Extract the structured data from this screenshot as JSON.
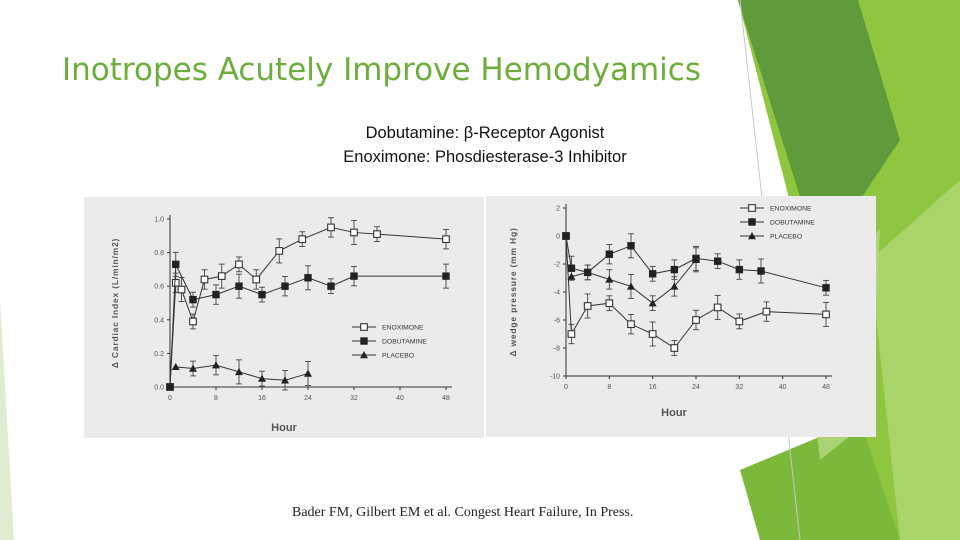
{
  "slide": {
    "title": "Inotropes Acutely Improve Hemodyamics",
    "subtitle_line1": "Dobutamine: β-Receptor Agonist",
    "subtitle_line2": "Enoximone: Phosdiesterase-3 Inhibitor",
    "citation": "Bader FM, Gilbert EM et al.  Congest Heart Failure, In Press."
  },
  "colors": {
    "title": "#6dae3a",
    "accent_green_dark": "#5f9b3a",
    "accent_green_light": "#8fc63f",
    "scan_background": "#ebebeb"
  },
  "chart_data": [
    {
      "type": "line",
      "xlabel": "Hour",
      "ylabel": "Δ Cardiac Index (L/min/m2)",
      "xlim": [
        0,
        48
      ],
      "ylim": [
        0,
        1.0
      ],
      "x_ticks": [
        "0",
        "8",
        "16",
        "24",
        "32",
        "40",
        "48"
      ],
      "y_ticks": [
        "0.0",
        "0.2",
        "0.4",
        "0.6",
        "0.8",
        "1.0"
      ],
      "legend_position": "bottom-right",
      "series": [
        {
          "name": "ENOXIMONE",
          "marker": "open-square",
          "x": [
            0,
            1,
            2,
            4,
            6,
            9,
            12,
            15,
            19,
            23,
            28,
            32,
            36,
            48
          ],
          "y": [
            0.0,
            0.62,
            0.58,
            0.39,
            0.64,
            0.66,
            0.73,
            0.64,
            0.81,
            0.88,
            0.95,
            0.92,
            0.91,
            0.88
          ]
        },
        {
          "name": "DOBUTAMINE",
          "marker": "filled-square",
          "x": [
            0,
            1,
            4,
            8,
            12,
            16,
            20,
            24,
            28,
            32,
            48
          ],
          "y": [
            0.0,
            0.73,
            0.52,
            0.55,
            0.6,
            0.55,
            0.6,
            0.65,
            0.6,
            0.66,
            0.66
          ]
        },
        {
          "name": "PLACEBO",
          "marker": "filled-triangle",
          "x": [
            1,
            4,
            8,
            12,
            16,
            20,
            24
          ],
          "y": [
            0.12,
            0.11,
            0.13,
            0.09,
            0.05,
            0.04,
            0.08
          ]
        }
      ]
    },
    {
      "type": "line",
      "xlabel": "Hour",
      "ylabel": "Δ wedge pressure (mm Hg)",
      "xlim": [
        0,
        48
      ],
      "ylim": [
        -10,
        2
      ],
      "x_ticks": [
        "0",
        "8",
        "16",
        "24",
        "32",
        "40",
        "48"
      ],
      "y_ticks": [
        "2",
        "0",
        "-2",
        "-4",
        "-6",
        "-8",
        "-10"
      ],
      "legend_position": "top-right",
      "series": [
        {
          "name": "ENOXIMONE",
          "marker": "open-square",
          "x": [
            0,
            1,
            4,
            8,
            12,
            16,
            20,
            24,
            28,
            32,
            37,
            48
          ],
          "y": [
            0,
            -7,
            -5,
            -4.8,
            -6.3,
            -7,
            -8,
            -6,
            -5.1,
            -6.1,
            -5.4,
            -5.6
          ]
        },
        {
          "name": "DOBUTAMINE",
          "marker": "filled-square",
          "x": [
            0,
            1,
            4,
            8,
            12,
            16,
            20,
            24,
            28,
            32,
            36,
            48
          ],
          "y": [
            0,
            -2.3,
            -2.6,
            -1.3,
            -0.7,
            -2.7,
            -2.4,
            -1.6,
            -1.8,
            -2.4,
            -2.5,
            -3.7
          ]
        },
        {
          "name": "PLACEBO",
          "marker": "filled-triangle",
          "x": [
            1,
            4,
            8,
            12,
            16,
            20,
            24
          ],
          "y": [
            -2.9,
            -2.6,
            -3.1,
            -3.6,
            -4.8,
            -3.6,
            -1.7
          ]
        }
      ]
    }
  ]
}
